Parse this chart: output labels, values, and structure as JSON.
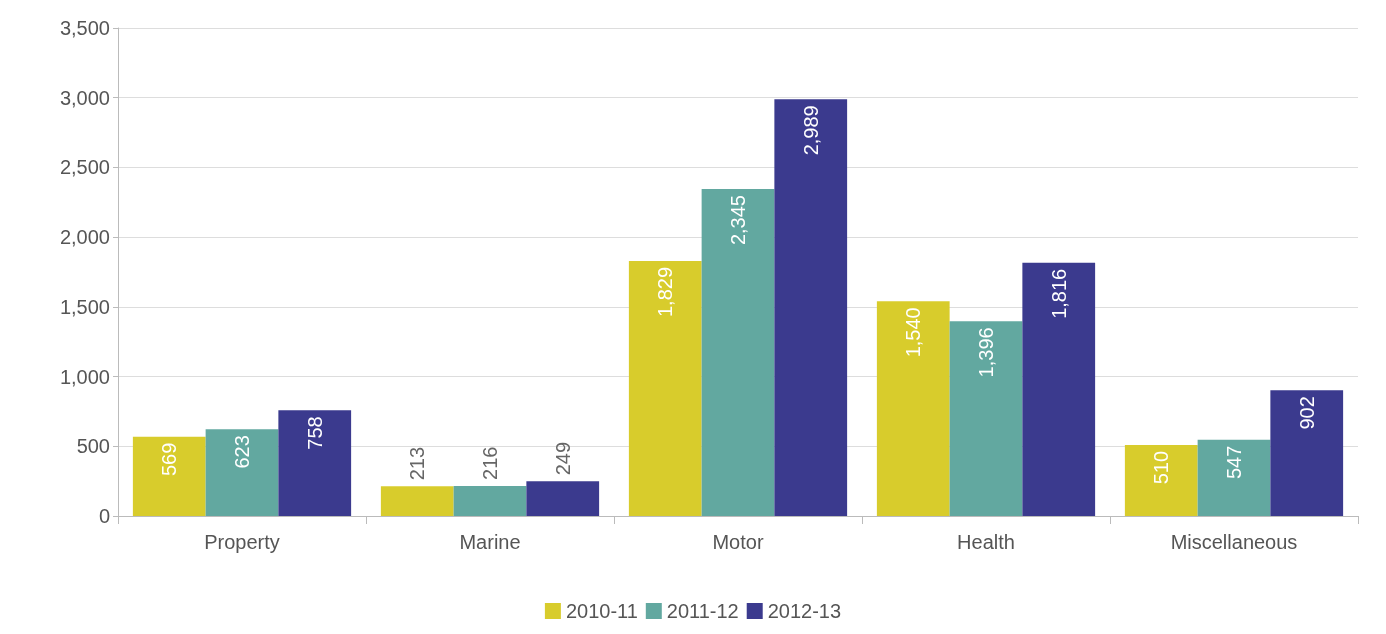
{
  "chart_data": {
    "type": "bar",
    "categories": [
      "Property",
      "Marine",
      "Motor",
      "Health",
      "Miscellaneous"
    ],
    "series": [
      {
        "name": "2010-11",
        "color": "#d8cc2c",
        "values": [
          569,
          213,
          1829,
          1540,
          510
        ],
        "value_labels": [
          "569",
          "213",
          "1,829",
          "1,540",
          "510"
        ]
      },
      {
        "name": "2011-12",
        "color": "#62a8a0",
        "values": [
          623,
          216,
          2345,
          1396,
          547
        ],
        "value_labels": [
          "623",
          "216",
          "2,345",
          "1,396",
          "547"
        ]
      },
      {
        "name": "2012-13",
        "color": "#3b3a8e",
        "values": [
          758,
          249,
          2989,
          1816,
          902
        ],
        "value_labels": [
          "758",
          "249",
          "2,989",
          "1,816",
          "902"
        ]
      }
    ],
    "ylim": [
      0,
      3500
    ],
    "yticks": [
      0,
      500,
      {
        "value": 1000,
        "label": "1,000"
      },
      {
        "value": 1500,
        "label": "1,500"
      },
      {
        "value": 2000,
        "label": "2,000"
      },
      {
        "value": 2500,
        "label": "2,500"
      },
      {
        "value": 3000,
        "label": "3,000"
      },
      {
        "value": 3500,
        "label": "3,500"
      }
    ],
    "grid": "y",
    "legend": "bottom"
  }
}
